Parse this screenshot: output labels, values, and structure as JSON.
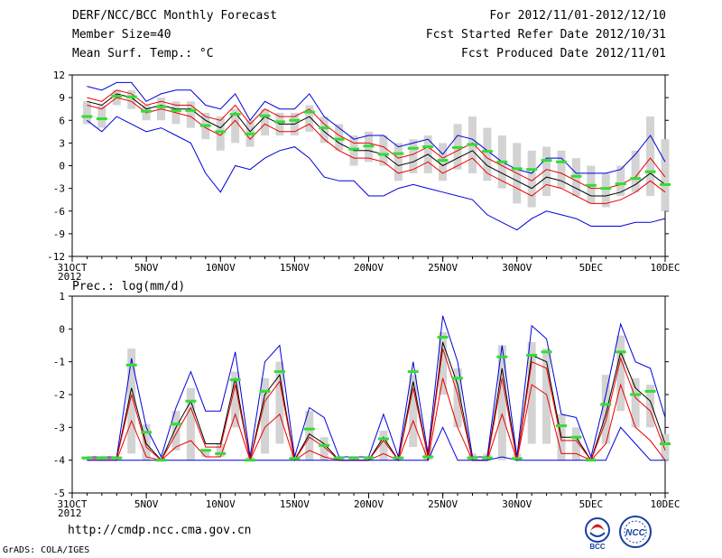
{
  "header": {
    "title": "DERF/NCC/BCC Monthly Forecast",
    "member_size": "Member Size=40",
    "variable": "Mean Surf. Temp.: °C",
    "period": "For 2012/11/01-2012/12/10",
    "fcst_started": "Fcst Started Refer Date 2012/10/31",
    "fcst_produced": "Fcst Produced Date 2012/11/01"
  },
  "footer": {
    "url": "http://cmdp.ncc.cma.gov.cn",
    "grads": "GrADS: COLA/IGES"
  },
  "logos": {
    "bcc": "BCC",
    "ncc": "NCC"
  },
  "colors": {
    "ensemble": "#d3d3d3",
    "obs": "#33dd33",
    "mean": "#000000",
    "inner": "#ee0000",
    "outer": "#0000dd"
  },
  "chart_data": [
    {
      "type": "line",
      "title": "Mean Surf. Temp.: °C",
      "x_ticks": [
        {
          "day": 0,
          "label": "31OCT"
        },
        {
          "day": 5,
          "label": "5NOV"
        },
        {
          "day": 10,
          "label": "10NOV"
        },
        {
          "day": 15,
          "label": "15NOV"
        },
        {
          "day": 20,
          "label": "20NOV"
        },
        {
          "day": 25,
          "label": "25NOV"
        },
        {
          "day": 30,
          "label": "30NOV"
        },
        {
          "day": 35,
          "label": "5DEC"
        },
        {
          "day": 40,
          "label": "10DEC"
        }
      ],
      "year_label": "2012",
      "xlim": [
        0,
        40
      ],
      "ylim": [
        -12,
        12
      ],
      "y_ticks": [
        12,
        9,
        6,
        3,
        0,
        -3,
        -6,
        -9,
        -12
      ],
      "days": [
        1,
        2,
        3,
        4,
        5,
        6,
        7,
        8,
        9,
        10,
        11,
        12,
        13,
        14,
        15,
        16,
        17,
        18,
        19,
        20,
        21,
        22,
        23,
        24,
        25,
        26,
        27,
        28,
        29,
        30,
        31,
        32,
        33,
        34,
        35,
        36,
        37,
        38,
        39,
        40
      ],
      "box_low": [
        5.5,
        5,
        8,
        7.5,
        6,
        6,
        5.5,
        5,
        3.5,
        2,
        3,
        2.5,
        4,
        4,
        4,
        4.5,
        3,
        2,
        0,
        0.5,
        0,
        -2,
        -1,
        -1,
        -2,
        -0.5,
        -1,
        -2,
        -3,
        -5,
        -5.5,
        -4,
        -3,
        -4,
        -5,
        -5.5,
        -4,
        -3.5,
        -4,
        -6
      ],
      "box_high": [
        8.5,
        8,
        10,
        10,
        8,
        9,
        8.5,
        8.5,
        7,
        6.5,
        7.5,
        6,
        7.5,
        7,
        7,
        8,
        6.5,
        5.5,
        4,
        4.5,
        4,
        3,
        3.5,
        4,
        3,
        5.5,
        6.5,
        5,
        4,
        3,
        2,
        2.5,
        2,
        1,
        0,
        -1,
        0,
        2,
        6.5,
        3.5
      ],
      "obs": [
        6.5,
        6.2,
        9.2,
        9.1,
        7.2,
        7.8,
        7.3,
        7.3,
        5.3,
        4.5,
        6.8,
        4.2,
        6.6,
        5.8,
        6.0,
        7.1,
        5.0,
        3.5,
        2.2,
        2.6,
        1.5,
        1.6,
        2.3,
        2.5,
        0.7,
        2.4,
        2.8,
        1.9,
        0.5,
        -0.4,
        -0.5,
        0.7,
        0.5,
        -1.4,
        -2.6,
        -3.0,
        -2.4,
        -1.7,
        -0.8,
        -2.5
      ],
      "series": [
        {
          "name": "max",
          "role": "outer",
          "values": [
            10.5,
            10,
            11,
            11,
            8.5,
            9.5,
            10,
            10,
            8,
            7.5,
            9.5,
            6,
            8.5,
            7.5,
            7.5,
            9.5,
            6.5,
            5,
            3.5,
            4,
            4,
            2.5,
            3,
            3.5,
            1.5,
            4,
            3.5,
            2,
            0.5,
            -0.5,
            -1,
            1,
            1,
            -1,
            -1,
            -1,
            -0.5,
            1.5,
            4,
            0.5
          ]
        },
        {
          "name": "upper",
          "role": "inner",
          "values": [
            9,
            8.5,
            10,
            9.5,
            8,
            8.5,
            8,
            8,
            6.5,
            6,
            8,
            5.5,
            7.5,
            6.5,
            6.5,
            7.5,
            5.5,
            4,
            3,
            3,
            2.5,
            1,
            1.5,
            2.5,
            1,
            2,
            3,
            1,
            0,
            -1,
            -2,
            -0.5,
            -1,
            -2,
            -3,
            -3,
            -2.5,
            -1.5,
            1,
            -1.5
          ]
        },
        {
          "name": "mean",
          "role": "mean",
          "values": [
            8.5,
            8,
            9.5,
            9,
            7.5,
            8,
            7.5,
            7.5,
            6,
            5,
            7,
            4.5,
            6.5,
            5.5,
            5.5,
            6.5,
            4.5,
            3,
            2,
            2,
            1.5,
            0,
            0.5,
            1.5,
            0,
            1,
            2,
            0,
            -1,
            -2,
            -3,
            -1.5,
            -2,
            -3,
            -4,
            -4,
            -3.5,
            -2.5,
            -1,
            -2.5
          ]
        },
        {
          "name": "lower",
          "role": "inner",
          "values": [
            8,
            7.5,
            9,
            8.5,
            7,
            7.5,
            7,
            6.5,
            5,
            4,
            6,
            3.5,
            5.5,
            4.5,
            4.5,
            5.5,
            3.5,
            2,
            1,
            1,
            0.5,
            -1,
            -0.5,
            0.5,
            -1,
            0,
            1,
            -1,
            -2,
            -3,
            -4,
            -2.5,
            -3,
            -4,
            -5,
            -5,
            -4.5,
            -3.5,
            -2,
            -3.5
          ]
        },
        {
          "name": "min",
          "role": "outer",
          "values": [
            6,
            4.5,
            6.5,
            5.5,
            4.5,
            5,
            4,
            3,
            -1,
            -3.5,
            0,
            -0.5,
            1,
            2,
            2.5,
            1,
            -1.5,
            -2,
            -2,
            -4,
            -4,
            -3,
            -2.5,
            -3,
            -3.5,
            -4,
            -4.5,
            -6.5,
            -7.5,
            -8.5,
            -7,
            -6,
            -6.5,
            -7,
            -8,
            -8,
            -8,
            -7.5,
            -7.5,
            -7
          ]
        }
      ]
    },
    {
      "type": "line",
      "title": "Prec.: log(mm/d)",
      "x_ticks": [
        {
          "day": 0,
          "label": "31OCT"
        },
        {
          "day": 5,
          "label": "5NOV"
        },
        {
          "day": 10,
          "label": "10NOV"
        },
        {
          "day": 15,
          "label": "15NOV"
        },
        {
          "day": 20,
          "label": "20NOV"
        },
        {
          "day": 25,
          "label": "25NOV"
        },
        {
          "day": 30,
          "label": "30NOV"
        },
        {
          "day": 35,
          "label": "5DEC"
        },
        {
          "day": 40,
          "label": "10DEC"
        }
      ],
      "year_label": "2012",
      "xlim": [
        0,
        40
      ],
      "ylim": [
        -5,
        1
      ],
      "y_ticks": [
        1,
        0,
        -1,
        -2,
        -3,
        -4,
        -5
      ],
      "days": [
        1,
        2,
        3,
        4,
        5,
        6,
        7,
        8,
        9,
        10,
        11,
        12,
        13,
        14,
        15,
        16,
        17,
        18,
        19,
        20,
        21,
        22,
        23,
        24,
        25,
        26,
        27,
        28,
        29,
        30,
        31,
        32,
        33,
        34,
        35,
        36,
        37,
        38,
        39,
        40
      ],
      "box_low": [
        -4,
        -4,
        -4,
        -3.8,
        -4,
        -4,
        -3.7,
        -4,
        -3.9,
        -3.9,
        -3,
        -4,
        -3.8,
        -3.5,
        -4,
        -4,
        -4,
        -4,
        -4,
        -4,
        -4,
        -4,
        -3.6,
        -4,
        -2,
        -3,
        -4,
        -4,
        -4,
        -4,
        -3.5,
        -3.5,
        -4,
        -4,
        -4,
        -3.5,
        -2.5,
        -3,
        -3,
        -4
      ],
      "box_high": [
        -3.9,
        -3.9,
        -3.9,
        -0.6,
        -2.9,
        -3.9,
        -2.5,
        -1.8,
        -3.7,
        -3.5,
        -1.3,
        -3.9,
        -1.5,
        -1,
        -3.8,
        -2.5,
        -3.3,
        -3.9,
        -3.9,
        -3.9,
        -3.1,
        -3.9,
        -1.4,
        -3.6,
        -0.1,
        -1.2,
        -3.8,
        -3.8,
        -0.5,
        -3.8,
        -0.4,
        -0.6,
        -2.6,
        -3.0,
        -3.9,
        -1.4,
        -0.2,
        -1.5,
        -1.7,
        -3.2
      ],
      "obs": [
        -3.93,
        -3.93,
        -3.93,
        -1.1,
        -3.15,
        -4.0,
        -2.9,
        -2.2,
        -3.7,
        -3.8,
        -1.55,
        -4.0,
        -1.9,
        -1.3,
        -3.95,
        -3.05,
        -3.55,
        -3.93,
        -3.93,
        -3.93,
        -3.35,
        -3.93,
        -1.3,
        -3.9,
        -0.25,
        -1.5,
        -3.93,
        -3.93,
        -0.85,
        -3.95,
        -0.8,
        -0.7,
        -2.95,
        -3.3,
        -4.0,
        -2.3,
        -0.7,
        -2.0,
        -1.9,
        -3.5
      ],
      "series": [
        {
          "name": "max",
          "role": "outer",
          "values": [
            -3.9,
            -3.9,
            -3.9,
            -0.9,
            -3.0,
            -3.9,
            -2.4,
            -1.3,
            -2.5,
            -2.5,
            -0.7,
            -3.9,
            -1.0,
            -0.5,
            -3.9,
            -2.4,
            -2.7,
            -3.9,
            -3.9,
            -3.9,
            -2.6,
            -3.9,
            -1.0,
            -3.8,
            0.4,
            -1.0,
            -3.9,
            -3.9,
            -0.5,
            -3.9,
            0.1,
            -0.3,
            -2.6,
            -2.7,
            -3.9,
            -2.0,
            0.15,
            -1.0,
            -1.2,
            -2.7
          ]
        },
        {
          "name": "mean",
          "role": "mean",
          "values": [
            -3.95,
            -3.95,
            -3.95,
            -1.8,
            -3.5,
            -4.0,
            -3.0,
            -2.2,
            -3.5,
            -3.5,
            -1.5,
            -4.0,
            -2.0,
            -1.4,
            -4.0,
            -3.2,
            -3.5,
            -4.0,
            -4.0,
            -4.0,
            -3.3,
            -4.0,
            -1.6,
            -3.9,
            -0.4,
            -1.7,
            -4.0,
            -4.0,
            -1.2,
            -4.0,
            -0.8,
            -1.0,
            -3.3,
            -3.3,
            -4.0,
            -2.6,
            -0.7,
            -1.8,
            -2.2,
            -3.5
          ]
        },
        {
          "name": "upper",
          "role": "inner",
          "values": [
            -3.95,
            -3.95,
            -3.95,
            -2.0,
            -3.6,
            -4.0,
            -3.2,
            -2.4,
            -3.6,
            -3.6,
            -1.7,
            -4.0,
            -2.2,
            -1.6,
            -4.0,
            -3.3,
            -3.6,
            -4.0,
            -4.0,
            -4.0,
            -3.4,
            -4.0,
            -1.8,
            -3.9,
            -0.6,
            -2.0,
            -4.0,
            -4.0,
            -1.5,
            -4.0,
            -1.0,
            -1.2,
            -3.4,
            -3.4,
            -4.0,
            -2.8,
            -0.9,
            -2.1,
            -2.5,
            -3.7
          ]
        },
        {
          "name": "lower",
          "role": "inner",
          "values": [
            -4.0,
            -4.0,
            -4.0,
            -2.8,
            -3.9,
            -4.0,
            -3.6,
            -3.4,
            -3.9,
            -3.9,
            -2.6,
            -4.0,
            -3.0,
            -2.6,
            -4.0,
            -3.7,
            -3.9,
            -4.0,
            -4.0,
            -4.0,
            -3.8,
            -4.0,
            -2.8,
            -4.0,
            -1.5,
            -3.0,
            -4.0,
            -4.0,
            -2.6,
            -4.0,
            -1.7,
            -2.0,
            -3.8,
            -3.8,
            -4.0,
            -3.5,
            -1.7,
            -3.0,
            -3.4,
            -4.0
          ]
        },
        {
          "name": "min",
          "role": "outer",
          "values": [
            -4.0,
            -4.0,
            -4.0,
            -4.0,
            -4.0,
            -4.0,
            -4.0,
            -4.0,
            -4.0,
            -4.0,
            -4.0,
            -4.0,
            -4.0,
            -4.0,
            -4.0,
            -4.0,
            -4.0,
            -4.0,
            -4.0,
            -4.0,
            -4.0,
            -4.0,
            -4.0,
            -4.0,
            -3.0,
            -4.0,
            -4.0,
            -4.0,
            -3.9,
            -4.0,
            -4.0,
            -4.0,
            -4.0,
            -4.0,
            -4.0,
            -4.0,
            -3.0,
            -3.5,
            -4.0,
            -4.0
          ]
        }
      ]
    }
  ]
}
